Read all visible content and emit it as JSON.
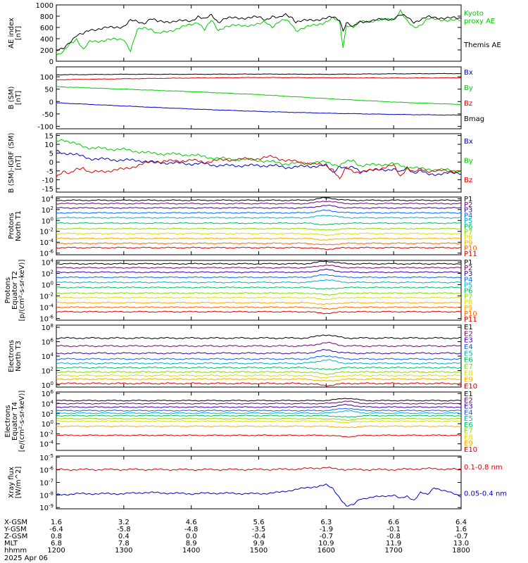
{
  "colors": {
    "black": "#000000",
    "green": "#00cc00",
    "red": "#dd0000",
    "blue": "#0000cc",
    "palette11": [
      "#000000",
      "#7a007a",
      "#3a00b0",
      "#0066ff",
      "#00b0d0",
      "#00c060",
      "#88dd00",
      "#dddd00",
      "#ffaa00",
      "#ff6600",
      "#dd0000"
    ],
    "palette10": [
      "#000000",
      "#7a007a",
      "#3a00b0",
      "#0066ff",
      "#00b0d0",
      "#00c060",
      "#88dd00",
      "#dddd00",
      "#ffaa00",
      "#dd0000"
    ]
  },
  "time_ticks": [
    "1200",
    "1300",
    "1400",
    "1500",
    "1600",
    "1700",
    "1800"
  ],
  "footer": {
    "rows": [
      {
        "label": "X-GSM",
        "values": [
          "1.6",
          "3.2",
          "4.6",
          "5.6",
          "6.3",
          "6.6",
          "6.4"
        ]
      },
      {
        "label": "Y-GSM",
        "values": [
          "-6.4",
          "-5.8",
          "-4.8",
          "-3.5",
          "-1.9",
          "-0.1",
          "1.6"
        ]
      },
      {
        "label": "Z-GSM",
        "values": [
          "0.8",
          "0.4",
          "0.0",
          "-0.4",
          "-0.7",
          "-0.8",
          "-0.7"
        ]
      },
      {
        "label": "MLT",
        "values": [
          "6.8",
          "7.8",
          "8.9",
          "9.9",
          "10.9",
          "11.9",
          "13.0"
        ]
      },
      {
        "label": "hhmm",
        "values": [
          "1200",
          "1300",
          "1400",
          "1500",
          "1600",
          "1700",
          "1800"
        ]
      }
    ],
    "date": "2025 Apr 06"
  },
  "chart_data": [
    {
      "type": "line",
      "ylabel": "AE index\n[nT]",
      "ylim": [
        0,
        1000
      ],
      "yticks": [
        "0",
        "200",
        "400",
        "600",
        "800",
        "1000"
      ],
      "legend": [
        "Kyoto\nproxy AE",
        "Themis AE"
      ],
      "series": [
        {
          "name": "Kyoto proxy AE",
          "color": "green",
          "x": [
            1200,
            1210,
            1220,
            1230,
            1240,
            1250,
            1300,
            1310,
            1320,
            1330,
            1340,
            1350,
            1400,
            1410,
            1420,
            1430,
            1440,
            1450,
            1500,
            1510,
            1520,
            1530,
            1540,
            1550,
            1555,
            1600,
            1610,
            1620,
            1625,
            1630,
            1640,
            1650,
            1700,
            1710,
            1720,
            1730,
            1740,
            1750,
            1800
          ],
          "y": [
            100,
            150,
            320,
            400,
            200,
            350,
            400,
            180,
            550,
            600,
            580,
            480,
            650,
            700,
            560,
            720,
            550,
            620,
            650,
            700,
            620,
            700,
            730,
            650,
            550,
            700,
            760,
            700,
            250,
            650,
            600,
            700,
            750,
            900,
            700,
            600,
            650,
            750,
            720
          ]
        },
        {
          "name": "Themis AE",
          "color": "black",
          "x": [
            1200,
            1210,
            1220,
            1230,
            1240,
            1250,
            1300,
            1310,
            1320,
            1330,
            1340,
            1350,
            1400,
            1410,
            1420,
            1430,
            1440,
            1450,
            1500,
            1510,
            1520,
            1530,
            1540,
            1550,
            1555,
            1600,
            1610,
            1620,
            1625,
            1630,
            1640,
            1650,
            1700,
            1710,
            1720,
            1730,
            1740,
            1750,
            1800
          ],
          "y": [
            180,
            220,
            350,
            460,
            480,
            560,
            620,
            720,
            700,
            680,
            760,
            700,
            720,
            800,
            740,
            820,
            700,
            760,
            780,
            740,
            800,
            760,
            830,
            780,
            700,
            760,
            780,
            740,
            550,
            690,
            600,
            700,
            760,
            820,
            780,
            700,
            740,
            780,
            760
          ]
        }
      ]
    },
    {
      "type": "line",
      "ylabel": "B (SM)\n[nT]",
      "ylim": [
        -110,
        140
      ],
      "yticks": [
        "-100",
        "-50",
        "0",
        "50",
        "100"
      ],
      "legend": [
        "Bx",
        "By",
        "Bz",
        "Bmag"
      ],
      "series": [
        {
          "name": "Bx",
          "color": "blue",
          "x": [
            1200,
            1300,
            1400,
            1500,
            1600,
            1700,
            1800
          ],
          "y": [
            -5,
            -18,
            -30,
            -40,
            -47,
            -52,
            -55
          ]
        },
        {
          "name": "By",
          "color": "green",
          "x": [
            1200,
            1300,
            1400,
            1500,
            1600,
            1700,
            1800
          ],
          "y": [
            60,
            50,
            40,
            28,
            12,
            -2,
            -12
          ]
        },
        {
          "name": "Bz",
          "color": "red",
          "x": [
            1200,
            1300,
            1400,
            1500,
            1600,
            1700,
            1800
          ],
          "y": [
            88,
            92,
            95,
            97,
            96,
            95,
            96
          ]
        },
        {
          "name": "Bmag",
          "color": "black",
          "x": [
            1200,
            1300,
            1400,
            1500,
            1600,
            1700,
            1800
          ],
          "y": [
            108,
            110,
            110,
            111,
            110,
            112,
            113
          ]
        }
      ]
    },
    {
      "type": "line",
      "ylabel": "B (SM)-IGRF (SM)\n[nT]",
      "ylim": [
        -17,
        16
      ],
      "yticks": [
        "-15",
        "-10",
        "-5",
        "0",
        "5",
        "10",
        "15"
      ],
      "legend": [
        "Bx",
        "By",
        "Bz"
      ],
      "series": [
        {
          "name": "Bx",
          "color": "blue",
          "x": [
            1200,
            1210,
            1220,
            1230,
            1240,
            1250,
            1300,
            1320,
            1340,
            1400,
            1420,
            1440,
            1500,
            1520,
            1540,
            1600,
            1610,
            1620,
            1630,
            1640,
            1650,
            1700,
            1710,
            1720,
            1730,
            1740,
            1750,
            1800
          ],
          "y": [
            6,
            5,
            5,
            4,
            3,
            2,
            1,
            1,
            0,
            -1,
            -1,
            -2,
            -2,
            -2,
            -3,
            -2,
            -6,
            -2,
            -4,
            -3,
            -5,
            -4,
            -6,
            -3,
            -6,
            -5,
            -7,
            -6
          ]
        },
        {
          "name": "By",
          "color": "green",
          "x": [
            1200,
            1210,
            1220,
            1230,
            1240,
            1250,
            1300,
            1320,
            1340,
            1400,
            1420,
            1440,
            1500,
            1520,
            1540,
            1600,
            1610,
            1620,
            1630,
            1640,
            1650,
            1700,
            1710,
            1720,
            1730,
            1740,
            1750,
            1800
          ],
          "y": [
            12,
            13,
            11,
            10,
            9,
            8,
            7,
            6,
            5,
            4,
            3,
            2,
            1,
            0,
            -1,
            0,
            -1,
            -2,
            0,
            1,
            -2,
            -1,
            -2,
            -3,
            -3,
            -4,
            -4,
            -5
          ]
        },
        {
          "name": "Bz",
          "color": "red",
          "x": [
            1200,
            1210,
            1220,
            1230,
            1240,
            1250,
            1300,
            1320,
            1340,
            1400,
            1420,
            1440,
            1500,
            1520,
            1540,
            1600,
            1610,
            1620,
            1630,
            1640,
            1650,
            1700,
            1710,
            1720,
            1730,
            1740,
            1750,
            1800
          ],
          "y": [
            -8,
            -5,
            -7,
            -4,
            -3,
            -6,
            -4,
            -2,
            0,
            1,
            0,
            1,
            2,
            3,
            1,
            -2,
            -4,
            -10,
            -3,
            -5,
            -6,
            -2,
            -8,
            -3,
            -6,
            -4,
            -5,
            -5
          ]
        }
      ]
    },
    {
      "type": "line",
      "ylabel": "Protons\nNorth T1",
      "yscale": "log",
      "ylim": [
        -6.3,
        4.3
      ],
      "yticks": [
        "10^4",
        "10^2",
        "10^0",
        "10^-2",
        "10^-4",
        "10^-6"
      ],
      "legend": [
        "P1",
        "P2",
        "P3",
        "P4",
        "P5",
        "P6",
        "P7",
        "P8",
        "P9",
        "P10",
        "P11"
      ],
      "levels_log10": [
        3.7,
        3.1,
        2.3,
        1.4,
        0.5,
        -0.5,
        -1.5,
        -2.4,
        -3.3,
        -4.2,
        -5.0
      ],
      "bump_at": 1600
    },
    {
      "type": "line",
      "ylabel": "Protons\nEquator T2\n[p/(cm²-s-sr-keV)]",
      "yscale": "log",
      "ylim": [
        -6.3,
        4.3
      ],
      "yticks": [
        "10^4",
        "10^2",
        "10^0",
        "10^-2",
        "10^-4",
        "10^-6"
      ],
      "legend": [
        "P1",
        "P2",
        "P3",
        "P4",
        "P5",
        "P6",
        "P7",
        "P8",
        "P9",
        "P10",
        "P11"
      ],
      "levels_log10": [
        3.7,
        3.0,
        2.2,
        1.3,
        0.4,
        -0.5,
        -1.5,
        -2.3,
        -3.2,
        -4.0,
        -4.8
      ],
      "bump_at": 1600
    },
    {
      "type": "line",
      "ylabel": "Electrons\nNorth T3",
      "yscale": "log",
      "ylim": [
        -0.3,
        8.3
      ],
      "yticks": [
        "10^8",
        "10^6",
        "10^4",
        "10^2",
        "10^0"
      ],
      "legend": [
        "E1",
        "E2",
        "E3",
        "E4",
        "E5",
        "E6",
        "E7",
        "E8",
        "E9",
        "E10"
      ],
      "levels_log10": [
        6.5,
        5.4,
        4.4,
        3.6,
        3.0,
        2.4,
        1.8,
        1.3,
        0.8,
        0.2
      ],
      "bump_at": 1600
    },
    {
      "type": "line",
      "ylabel": "Electrons\nEquator T4\n[e/(cm²-s-sr-keV)]",
      "yscale": "log",
      "ylim": [
        -5.3,
        6.3
      ],
      "yticks": [
        "10^6",
        "10^4",
        "10^2",
        "10^0",
        "10^-2",
        "10^-4"
      ],
      "legend": [
        "E1",
        "E2",
        "E3",
        "E4",
        "E5",
        "E6",
        "E7",
        "E8",
        "E9",
        "E10"
      ],
      "levels_log10": [
        4.6,
        4.0,
        3.3,
        2.6,
        2.1,
        1.6,
        1.0,
        0.5,
        -0.5,
        -2.3
      ],
      "bump_at": 1630
    },
    {
      "type": "line",
      "ylabel": "Xray flux\n[W/m^2]",
      "yscale": "log",
      "ylim": [
        -9.1,
        -4.9
      ],
      "yticks": [
        "10^-5",
        "10^-6",
        "10^-7",
        "10^-8",
        "10^-9"
      ],
      "legend": [
        "0.1-0.8 nm",
        "0.05-0.4 nm"
      ],
      "series": [
        {
          "name": "0.1-0.8 nm",
          "color": "red",
          "x": [
            1200,
            1300,
            1400,
            1500,
            1550,
            1600,
            1610,
            1630,
            1700,
            1750,
            1800
          ],
          "y": [
            -5.98,
            -5.97,
            -5.98,
            -5.97,
            -5.95,
            -5.82,
            -5.9,
            -5.98,
            -5.98,
            -5.9,
            -5.97
          ]
        },
        {
          "name": "0.05-0.4 nm",
          "color": "blue",
          "x": [
            1200,
            1230,
            1300,
            1330,
            1400,
            1430,
            1500,
            1530,
            1550,
            1600,
            1610,
            1620,
            1630,
            1640,
            1650,
            1700,
            1710,
            1720,
            1730,
            1740,
            1750,
            1760,
            1800
          ],
          "y": [
            -8.0,
            -7.9,
            -7.9,
            -7.8,
            -7.9,
            -7.85,
            -7.9,
            -7.8,
            -7.6,
            -7.2,
            -7.5,
            -8.2,
            -8.9,
            -8.8,
            -8.3,
            -8.0,
            -8.3,
            -8.1,
            -8.4,
            -7.8,
            -8.0,
            -7.4,
            -8.1
          ]
        }
      ]
    }
  ]
}
